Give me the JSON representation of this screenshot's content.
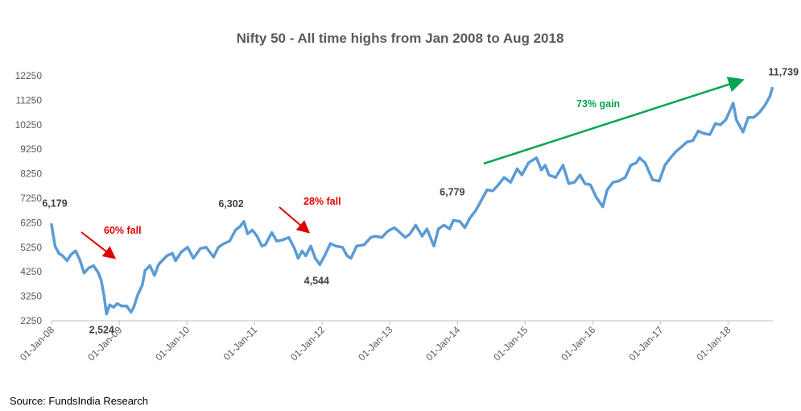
{
  "chart_data": {
    "type": "line",
    "title": "Nifty 50 - All time highs from Jan 2008 to Aug 2018",
    "xlabel": "",
    "ylabel": "",
    "ylim": [
      2250,
      12250
    ],
    "y_ticks": [
      "12250",
      "11250",
      "10250",
      "9250",
      "8250",
      "7250",
      "6250",
      "5250",
      "4250",
      "3250",
      "2250"
    ],
    "x_ticks": [
      "01-Jan-08",
      "01-Jan-09",
      "01-Jan-10",
      "01-Jan-11",
      "01-Jan-12",
      "01-Jan-13",
      "01-Jan-14",
      "01-Jan-15",
      "01-Jan-16",
      "01-Jan-17",
      "01-Jan-18"
    ],
    "x_range": [
      "2008-01-01",
      "2018-08-31"
    ],
    "grid": false,
    "series_color": "#5b9bd5",
    "series": [
      {
        "values": [
          [
            "2008-01-01",
            6179
          ],
          [
            "2008-01-20",
            5300
          ],
          [
            "2008-02-10",
            5000
          ],
          [
            "2008-03-01",
            4900
          ],
          [
            "2008-03-25",
            4700
          ],
          [
            "2008-04-15",
            4950
          ],
          [
            "2008-05-10",
            5100
          ],
          [
            "2008-06-01",
            4750
          ],
          [
            "2008-06-25",
            4200
          ],
          [
            "2008-07-20",
            4400
          ],
          [
            "2008-08-15",
            4500
          ],
          [
            "2008-09-10",
            4200
          ],
          [
            "2008-09-25",
            3900
          ],
          [
            "2008-10-10",
            3300
          ],
          [
            "2008-10-24",
            2524
          ],
          [
            "2008-11-10",
            2900
          ],
          [
            "2008-12-01",
            2800
          ],
          [
            "2008-12-20",
            2950
          ],
          [
            "2009-01-15",
            2850
          ],
          [
            "2009-02-10",
            2850
          ],
          [
            "2009-03-05",
            2600
          ],
          [
            "2009-03-20",
            2800
          ],
          [
            "2009-04-10",
            3300
          ],
          [
            "2009-05-05",
            3700
          ],
          [
            "2009-05-20",
            4300
          ],
          [
            "2009-06-15",
            4500
          ],
          [
            "2009-07-10",
            4100
          ],
          [
            "2009-08-01",
            4550
          ],
          [
            "2009-09-15",
            4900
          ],
          [
            "2009-10-15",
            5000
          ],
          [
            "2009-11-01",
            4700
          ],
          [
            "2009-12-01",
            5050
          ],
          [
            "2010-01-05",
            5250
          ],
          [
            "2010-02-05",
            4800
          ],
          [
            "2010-03-15",
            5200
          ],
          [
            "2010-04-15",
            5250
          ],
          [
            "2010-05-25",
            4850
          ],
          [
            "2010-06-20",
            5250
          ],
          [
            "2010-07-20",
            5400
          ],
          [
            "2010-08-20",
            5500
          ],
          [
            "2010-09-20",
            5950
          ],
          [
            "2010-10-15",
            6100
          ],
          [
            "2010-11-05",
            6302
          ],
          [
            "2010-11-25",
            5800
          ],
          [
            "2010-12-20",
            5950
          ],
          [
            "2011-01-15",
            5700
          ],
          [
            "2011-02-10",
            5300
          ],
          [
            "2011-02-28",
            5350
          ],
          [
            "2011-04-05",
            5850
          ],
          [
            "2011-05-01",
            5500
          ],
          [
            "2011-06-01",
            5550
          ],
          [
            "2011-07-05",
            5650
          ],
          [
            "2011-08-05",
            5200
          ],
          [
            "2011-08-25",
            4800
          ],
          [
            "2011-09-15",
            5100
          ],
          [
            "2011-10-05",
            4900
          ],
          [
            "2011-11-01",
            5300
          ],
          [
            "2011-11-25",
            4800
          ],
          [
            "2011-12-20",
            4544
          ],
          [
            "2012-01-15",
            4900
          ],
          [
            "2012-02-15",
            5400
          ],
          [
            "2012-03-15",
            5300
          ],
          [
            "2012-04-20",
            5250
          ],
          [
            "2012-05-15",
            4900
          ],
          [
            "2012-06-05",
            4800
          ],
          [
            "2012-07-05",
            5300
          ],
          [
            "2012-08-15",
            5350
          ],
          [
            "2012-09-20",
            5650
          ],
          [
            "2012-10-15",
            5700
          ],
          [
            "2012-11-20",
            5650
          ],
          [
            "2012-12-20",
            5900
          ],
          [
            "2013-01-25",
            6050
          ],
          [
            "2013-02-25",
            5850
          ],
          [
            "2013-03-25",
            5650
          ],
          [
            "2013-04-20",
            5800
          ],
          [
            "2013-05-20",
            6150
          ],
          [
            "2013-06-25",
            5700
          ],
          [
            "2013-07-20",
            6000
          ],
          [
            "2013-08-27",
            5300
          ],
          [
            "2013-09-20",
            6000
          ],
          [
            "2013-10-20",
            6150
          ],
          [
            "2013-11-20",
            6000
          ],
          [
            "2013-12-10",
            6350
          ],
          [
            "2014-01-15",
            6300
          ],
          [
            "2014-02-10",
            6050
          ],
          [
            "2014-03-10",
            6450
          ],
          [
            "2014-04-10",
            6750
          ],
          [
            "2014-05-20",
            7300
          ],
          [
            "2014-06-10",
            7600
          ],
          [
            "2014-07-10",
            7550
          ],
          [
            "2014-08-10",
            7800
          ],
          [
            "2014-09-10",
            8100
          ],
          [
            "2014-10-15",
            7900
          ],
          [
            "2014-11-20",
            8450
          ],
          [
            "2014-12-15",
            8200
          ],
          [
            "2015-01-20",
            8700
          ],
          [
            "2015-03-04",
            8900
          ],
          [
            "2015-03-30",
            8400
          ],
          [
            "2015-04-20",
            8600
          ],
          [
            "2015-05-10",
            8200
          ],
          [
            "2015-06-15",
            8100
          ],
          [
            "2015-07-25",
            8600
          ],
          [
            "2015-08-25",
            7850
          ],
          [
            "2015-09-25",
            7900
          ],
          [
            "2015-10-25",
            8200
          ],
          [
            "2015-11-20",
            7850
          ],
          [
            "2015-12-20",
            7800
          ],
          [
            "2016-01-20",
            7300
          ],
          [
            "2016-02-25",
            6900
          ],
          [
            "2016-03-20",
            7600
          ],
          [
            "2016-04-20",
            7900
          ],
          [
            "2016-05-20",
            7950
          ],
          [
            "2016-06-25",
            8100
          ],
          [
            "2016-07-25",
            8600
          ],
          [
            "2016-08-25",
            8700
          ],
          [
            "2016-09-10",
            8900
          ],
          [
            "2016-10-10",
            8700
          ],
          [
            "2016-11-20",
            8000
          ],
          [
            "2016-12-26",
            7950
          ],
          [
            "2017-01-25",
            8600
          ],
          [
            "2017-02-25",
            8900
          ],
          [
            "2017-03-25",
            9150
          ],
          [
            "2017-04-25",
            9350
          ],
          [
            "2017-05-25",
            9550
          ],
          [
            "2017-06-25",
            9600
          ],
          [
            "2017-07-25",
            10000
          ],
          [
            "2017-08-20",
            9900
          ],
          [
            "2017-09-25",
            9850
          ],
          [
            "2017-10-25",
            10300
          ],
          [
            "2017-11-20",
            10250
          ],
          [
            "2017-12-20",
            10450
          ],
          [
            "2018-01-29",
            11130
          ],
          [
            "2018-02-15",
            10450
          ],
          [
            "2018-03-23",
            9950
          ],
          [
            "2018-04-20",
            10550
          ],
          [
            "2018-05-20",
            10550
          ],
          [
            "2018-06-20",
            10750
          ],
          [
            "2018-07-20",
            11050
          ],
          [
            "2018-08-15",
            11400
          ],
          [
            "2018-08-28",
            11739
          ]
        ]
      }
    ],
    "value_labels": [
      {
        "text": "6,179",
        "x": "2008-01-01",
        "y": 6179
      },
      {
        "text": "2,524",
        "x": "2008-10-24",
        "y": 2524
      },
      {
        "text": "6,302",
        "x": "2010-11-05",
        "y": 6302
      },
      {
        "text": "4,544",
        "x": "2011-12-20",
        "y": 4544
      },
      {
        "text": "6,779",
        "x": "2014-03-01",
        "y": 6779
      },
      {
        "text": "11,739",
        "x": "2018-08-28",
        "y": 11739
      }
    ],
    "annotations": [
      {
        "text": "60% fall",
        "color": "#e00000",
        "arrow": "down"
      },
      {
        "text": "28% fall",
        "color": "#e00000",
        "arrow": "down"
      },
      {
        "text": "73% gain",
        "color": "#00a651",
        "arrow": "up"
      }
    ]
  },
  "source": "Source: FundsIndia Research"
}
